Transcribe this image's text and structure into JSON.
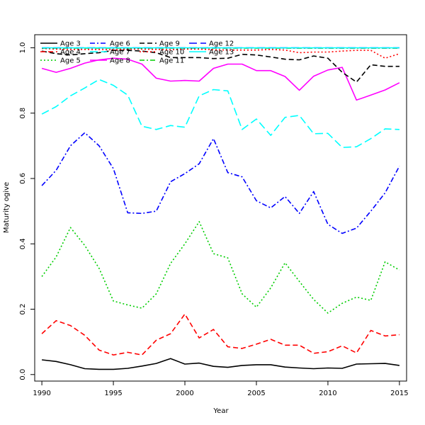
{
  "chart_data": {
    "type": "line",
    "title": "",
    "xlabel": "Year",
    "ylabel": "Maturity ogive",
    "xlim": [
      1989.5,
      2015.5
    ],
    "ylim": [
      -0.02,
      1.04
    ],
    "xticks": [
      "1990",
      "1995",
      "2000",
      "2005",
      "2010",
      "2015"
    ],
    "yticks": [
      "0.0",
      "0.2",
      "0.4",
      "0.6",
      "0.8",
      "1.0"
    ],
    "grid": false,
    "legend_position": "top-left",
    "x": [
      1990,
      1991,
      1992,
      1993,
      1994,
      1995,
      1996,
      1997,
      1998,
      1999,
      2000,
      2001,
      2002,
      2003,
      2004,
      2005,
      2006,
      2007,
      2008,
      2009,
      2010,
      2011,
      2012,
      2013,
      2014,
      2015
    ],
    "series": [
      {
        "name": "Age 3",
        "color": "#000000",
        "dash": "solid",
        "values": [
          0.045,
          0.04,
          0.03,
          0.018,
          0.016,
          0.016,
          0.019,
          0.026,
          0.034,
          0.049,
          0.032,
          0.035,
          0.025,
          0.022,
          0.028,
          0.03,
          0.03,
          0.023,
          0.02,
          0.018,
          0.02,
          0.019,
          0.032,
          0.033,
          0.034,
          0.028
        ]
      },
      {
        "name": "Age 4",
        "color": "#ff0000",
        "dash": "dashed",
        "values": [
          0.125,
          0.165,
          0.15,
          0.12,
          0.075,
          0.06,
          0.068,
          0.06,
          0.105,
          0.125,
          0.185,
          0.112,
          0.138,
          0.085,
          0.08,
          0.093,
          0.108,
          0.09,
          0.09,
          0.065,
          0.07,
          0.088,
          0.066,
          0.135,
          0.118,
          0.122
        ]
      },
      {
        "name": "Age 5",
        "color": "#00cd00",
        "dash": "dotted",
        "values": [
          0.3,
          0.36,
          0.45,
          0.395,
          0.325,
          0.225,
          0.213,
          0.203,
          0.247,
          0.34,
          0.4,
          0.468,
          0.37,
          0.357,
          0.247,
          0.206,
          0.265,
          0.342,
          0.285,
          0.23,
          0.188,
          0.218,
          0.237,
          0.227,
          0.345,
          0.32
        ]
      },
      {
        "name": "Age 6",
        "color": "#0000ff",
        "dash": "dashdot",
        "values": [
          0.578,
          0.625,
          0.7,
          0.74,
          0.7,
          0.63,
          0.495,
          0.493,
          0.5,
          0.59,
          0.615,
          0.645,
          0.722,
          0.618,
          0.605,
          0.532,
          0.51,
          0.545,
          0.493,
          0.56,
          0.46,
          0.432,
          0.448,
          0.5,
          0.556,
          0.638
        ]
      },
      {
        "name": "Age 7",
        "color": "#00ffff",
        "dash": "longdash",
        "values": [
          0.797,
          0.82,
          0.853,
          0.877,
          0.903,
          0.885,
          0.855,
          0.76,
          0.75,
          0.762,
          0.757,
          0.853,
          0.872,
          0.868,
          0.75,
          0.782,
          0.732,
          0.787,
          0.793,
          0.737,
          0.738,
          0.695,
          0.697,
          0.722,
          0.752,
          0.75
        ]
      },
      {
        "name": "Age 8",
        "color": "#ff00ff",
        "dash": "solid",
        "values": [
          0.937,
          0.925,
          0.937,
          0.953,
          0.963,
          0.968,
          0.965,
          0.95,
          0.907,
          0.898,
          0.9,
          0.898,
          0.937,
          0.95,
          0.95,
          0.93,
          0.93,
          0.912,
          0.87,
          0.913,
          0.932,
          0.94,
          0.84,
          0.855,
          0.871,
          0.893
        ]
      },
      {
        "name": "Age 9",
        "color": "#000000",
        "dash": "dashed",
        "values": [
          0.99,
          0.982,
          0.978,
          0.982,
          0.985,
          0.992,
          0.992,
          0.99,
          0.985,
          0.97,
          0.97,
          0.97,
          0.967,
          0.968,
          0.98,
          0.978,
          0.972,
          0.965,
          0.963,
          0.975,
          0.968,
          0.925,
          0.895,
          0.948,
          0.943,
          0.943
        ]
      },
      {
        "name": "Age 10",
        "color": "#ff0000",
        "dash": "dotted",
        "values": [
          0.998,
          0.996,
          0.995,
          0.995,
          0.995,
          0.994,
          0.996,
          0.996,
          0.995,
          0.994,
          0.996,
          0.996,
          0.994,
          0.993,
          0.993,
          0.993,
          0.995,
          0.993,
          0.985,
          0.987,
          0.987,
          0.99,
          0.992,
          0.992,
          0.968,
          0.982
        ]
      },
      {
        "name": "Age 11",
        "color": "#00cd00",
        "dash": "dashdot",
        "values": [
          0.999,
          0.999,
          0.999,
          0.999,
          0.999,
          0.999,
          0.999,
          0.999,
          0.999,
          0.999,
          0.999,
          0.999,
          0.999,
          0.999,
          0.999,
          0.999,
          0.999,
          0.999,
          0.999,
          0.999,
          0.999,
          0.999,
          0.999,
          0.999,
          0.999,
          0.999
        ]
      },
      {
        "name": "Age 12",
        "color": "#0000ff",
        "dash": "longdash",
        "values": [
          1.0,
          1.0,
          1.0,
          1.0,
          1.0,
          1.0,
          1.0,
          1.0,
          1.0,
          1.0,
          1.0,
          1.0,
          1.0,
          1.0,
          1.0,
          1.0,
          1.0,
          1.0,
          1.0,
          1.0,
          1.0,
          1.0,
          1.0,
          1.0,
          1.0,
          1.0
        ]
      },
      {
        "name": "Age 13",
        "color": "#00ffff",
        "dash": "solid",
        "values": [
          1.0,
          1.0,
          1.0,
          1.0,
          1.0,
          1.0,
          1.0,
          1.0,
          1.0,
          1.0,
          1.0,
          1.0,
          1.0,
          1.0,
          1.0,
          1.0,
          1.0,
          1.0,
          1.0,
          1.0,
          1.0,
          1.0,
          1.0,
          1.0,
          1.0,
          1.0
        ]
      }
    ]
  }
}
